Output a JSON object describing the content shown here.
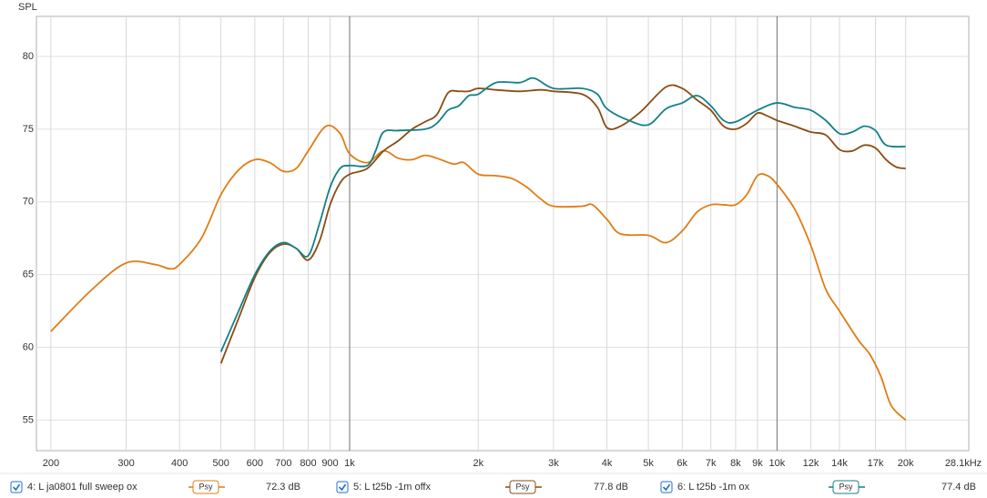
{
  "chart_data": {
    "type": "line",
    "y_label": "SPL",
    "xscale": "log",
    "grid": true,
    "xlim": [
      185,
      28100
    ],
    "ylim": [
      52.9,
      82.75
    ],
    "yticks": [
      55,
      60,
      65,
      70,
      75,
      80
    ],
    "xticks": [
      200,
      300,
      400,
      500,
      600,
      700,
      800,
      900,
      {
        "value": 1000,
        "label": "1k"
      },
      {
        "value": 2000,
        "label": "2k"
      },
      {
        "value": 3000,
        "label": "3k"
      },
      {
        "value": 4000,
        "label": "4k"
      },
      {
        "value": 5000,
        "label": "5k"
      },
      {
        "value": 6000,
        "label": "6k"
      },
      {
        "value": 7000,
        "label": "7k"
      },
      {
        "value": 8000,
        "label": "8k"
      },
      {
        "value": 9000,
        "label": "9k"
      },
      {
        "value": 10000,
        "label": "10k"
      },
      {
        "value": 12000,
        "label": "12k"
      },
      {
        "value": 14000,
        "label": "14k"
      },
      {
        "value": 17000,
        "label": "17k"
      },
      {
        "value": 20000,
        "label": "20k"
      },
      {
        "value": 28100,
        "label": "28.1kHz"
      }
    ],
    "series": [
      {
        "name": "4: L ja0801 full sweep ox",
        "color": "#e07c14",
        "smoothing": "Psy",
        "level": "72.3 dB",
        "x": [
          200,
          250,
          300,
          350,
          380,
          400,
          450,
          500,
          550,
          600,
          650,
          700,
          750,
          800,
          880,
          950,
          1000,
          1100,
          1200,
          1300,
          1400,
          1500,
          1600,
          1750,
          1850,
          2000,
          2200,
          2400,
          2600,
          2800,
          3000,
          3500,
          3700,
          4000,
          4300,
          5000,
          5500,
          6000,
          6500,
          7000,
          7500,
          8000,
          8500,
          9000,
          9500,
          10000,
          11000,
          12000,
          13000,
          14000,
          15500,
          16500,
          17500,
          18500,
          20000
        ],
        "values": [
          61.1,
          64.0,
          65.8,
          65.7,
          65.4,
          65.7,
          67.5,
          70.5,
          72.2,
          72.9,
          72.7,
          72.1,
          72.3,
          73.5,
          75.2,
          74.7,
          73.3,
          72.7,
          73.5,
          73.0,
          72.9,
          73.2,
          73.0,
          72.6,
          72.7,
          71.9,
          71.8,
          71.6,
          71.0,
          70.2,
          69.7,
          69.7,
          69.8,
          68.8,
          67.8,
          67.7,
          67.2,
          68.0,
          69.3,
          69.8,
          69.8,
          69.8,
          70.5,
          71.8,
          71.8,
          71.2,
          69.5,
          67.0,
          64.0,
          62.5,
          60.5,
          59.5,
          58.0,
          56.0,
          55.0
        ]
      },
      {
        "name": "5: L t25b -1m offx",
        "color": "#8b4c13",
        "smoothing": "Psy",
        "level": "77.8 dB",
        "x": [
          500,
          550,
          600,
          650,
          700,
          750,
          800,
          850,
          900,
          950,
          1000,
          1100,
          1200,
          1300,
          1400,
          1500,
          1600,
          1700,
          1800,
          1900,
          2000,
          2200,
          2500,
          2800,
          3000,
          3500,
          3800,
          4000,
          4300,
          4800,
          5500,
          6000,
          6500,
          7000,
          7500,
          8000,
          8500,
          9000,
          9500,
          10000,
          11000,
          12000,
          13000,
          14000,
          15000,
          16000,
          17000,
          18000,
          19000,
          20000
        ],
        "values": [
          58.9,
          62.0,
          64.8,
          66.5,
          67.1,
          66.8,
          66.0,
          67.3,
          69.8,
          71.3,
          71.9,
          72.3,
          73.5,
          74.2,
          75.0,
          75.5,
          76.0,
          77.5,
          77.6,
          77.6,
          77.8,
          77.7,
          77.6,
          77.7,
          77.6,
          77.4,
          76.5,
          75.1,
          75.2,
          76.2,
          77.9,
          77.8,
          77.0,
          76.3,
          75.2,
          75.0,
          75.4,
          76.1,
          75.9,
          75.6,
          75.2,
          74.8,
          74.6,
          73.6,
          73.5,
          73.9,
          73.7,
          72.9,
          72.4,
          72.3
        ]
      },
      {
        "name": "6: L t25b -1m ox",
        "color": "#138089",
        "smoothing": "Psy",
        "level": "77.4 dB",
        "x": [
          500,
          550,
          600,
          650,
          700,
          750,
          800,
          850,
          900,
          950,
          1000,
          1100,
          1150,
          1200,
          1300,
          1500,
          1600,
          1700,
          1800,
          1900,
          2000,
          2200,
          2500,
          2700,
          3000,
          3500,
          3800,
          4000,
          4500,
          5000,
          5500,
          6000,
          6500,
          7000,
          7500,
          8000,
          9000,
          10000,
          11000,
          12000,
          13000,
          14000,
          15000,
          16000,
          17000,
          18000,
          20000
        ],
        "values": [
          59.7,
          62.5,
          65.0,
          66.6,
          67.2,
          66.8,
          66.3,
          68.5,
          71.0,
          72.3,
          72.5,
          72.5,
          73.5,
          74.8,
          74.9,
          75.0,
          75.4,
          76.3,
          76.6,
          77.3,
          77.4,
          78.2,
          78.2,
          78.5,
          77.8,
          77.8,
          77.4,
          76.4,
          75.6,
          75.3,
          76.4,
          76.8,
          77.3,
          76.6,
          75.6,
          75.5,
          76.3,
          76.8,
          76.5,
          76.3,
          75.6,
          74.7,
          74.8,
          75.2,
          74.9,
          73.9,
          73.8
        ]
      }
    ]
  }
}
